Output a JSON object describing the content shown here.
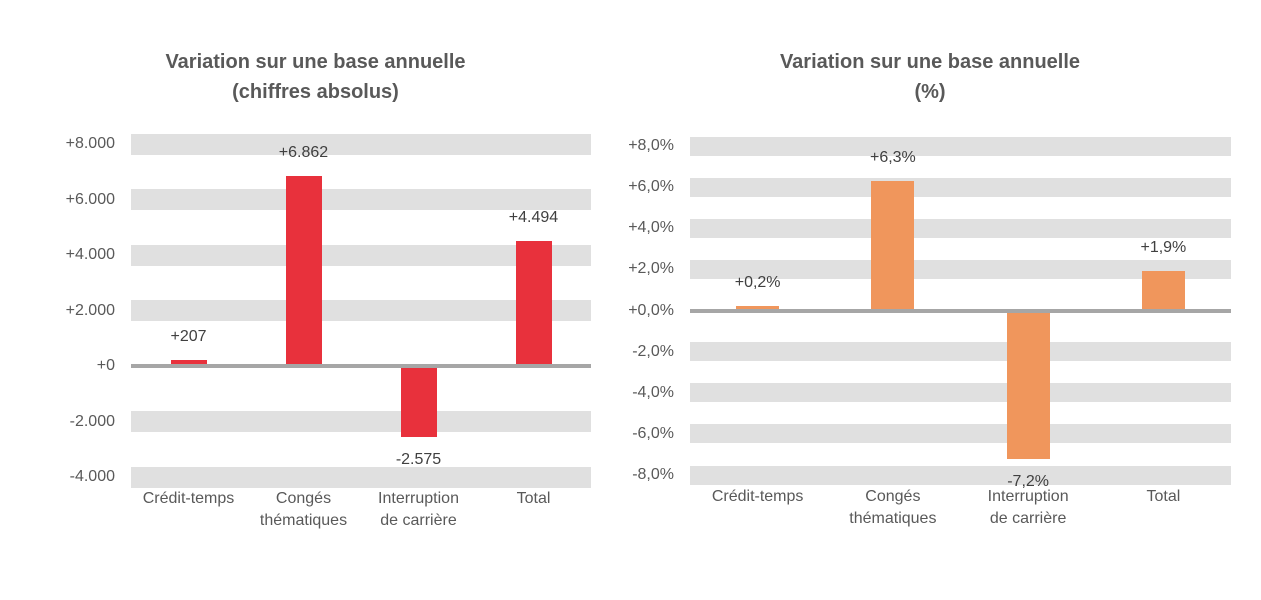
{
  "page": {
    "background": "#ffffff"
  },
  "colors": {
    "band": "#e0e0e0",
    "zero_line": "#a6a6a6",
    "title_text": "#595959",
    "axis_text": "#595959",
    "data_label_text": "#404040",
    "red_bar": "#e8313c",
    "orange_bar": "#f0965c"
  },
  "chart_data": [
    {
      "id": "absolute",
      "type": "bar",
      "title_lines": [
        "Variation sur une base annuelle",
        "(chiffres absolus)"
      ],
      "categories": [
        [
          "Crédit-temps"
        ],
        [
          "Congés",
          "thématiques"
        ],
        [
          "Interruption",
          "de carrière"
        ],
        [
          "Total"
        ]
      ],
      "values": [
        207,
        6862,
        -2575,
        4494
      ],
      "data_labels": [
        "+207",
        "+6.862",
        "-2.575",
        "+4.494"
      ],
      "bar_color": "#e8313c",
      "ymin": -4000,
      "ymax": 8000,
      "yticks": [
        {
          "value": 8000,
          "label": "+8.000"
        },
        {
          "value": 6000,
          "label": "+6.000"
        },
        {
          "value": 4000,
          "label": "+4.000"
        },
        {
          "value": 2000,
          "label": "+2.000"
        },
        {
          "value": 0,
          "label": "+0"
        },
        {
          "value": -2000,
          "label": "-2.000"
        },
        {
          "value": -4000,
          "label": "-4.000"
        }
      ],
      "grid": "horizontal-bands",
      "legend": "none"
    },
    {
      "id": "percent",
      "type": "bar",
      "title_lines": [
        "Variation sur une base annuelle",
        "(%)"
      ],
      "categories": [
        [
          "Crédit-temps"
        ],
        [
          "Congés",
          "thématiques"
        ],
        [
          "Interruption",
          "de carrière"
        ],
        [
          "Total"
        ]
      ],
      "values": [
        0.2,
        6.3,
        -7.2,
        1.9
      ],
      "data_labels": [
        "+0,2%",
        "+6,3%",
        "-7,2%",
        "+1,9%"
      ],
      "bar_color": "#f0965c",
      "ymin": -8,
      "ymax": 8,
      "yticks": [
        {
          "value": 8,
          "label": "+8,0%"
        },
        {
          "value": 6,
          "label": "+6,0%"
        },
        {
          "value": 4,
          "label": "+4,0%"
        },
        {
          "value": 2,
          "label": "+2,0%"
        },
        {
          "value": 0,
          "label": "+0,0%"
        },
        {
          "value": -2,
          "label": "-2,0%"
        },
        {
          "value": -4,
          "label": "-4,0%"
        },
        {
          "value": -6,
          "label": "-6,0%"
        },
        {
          "value": -8,
          "label": "-8,0%"
        }
      ],
      "grid": "horizontal-bands",
      "legend": "none"
    }
  ]
}
